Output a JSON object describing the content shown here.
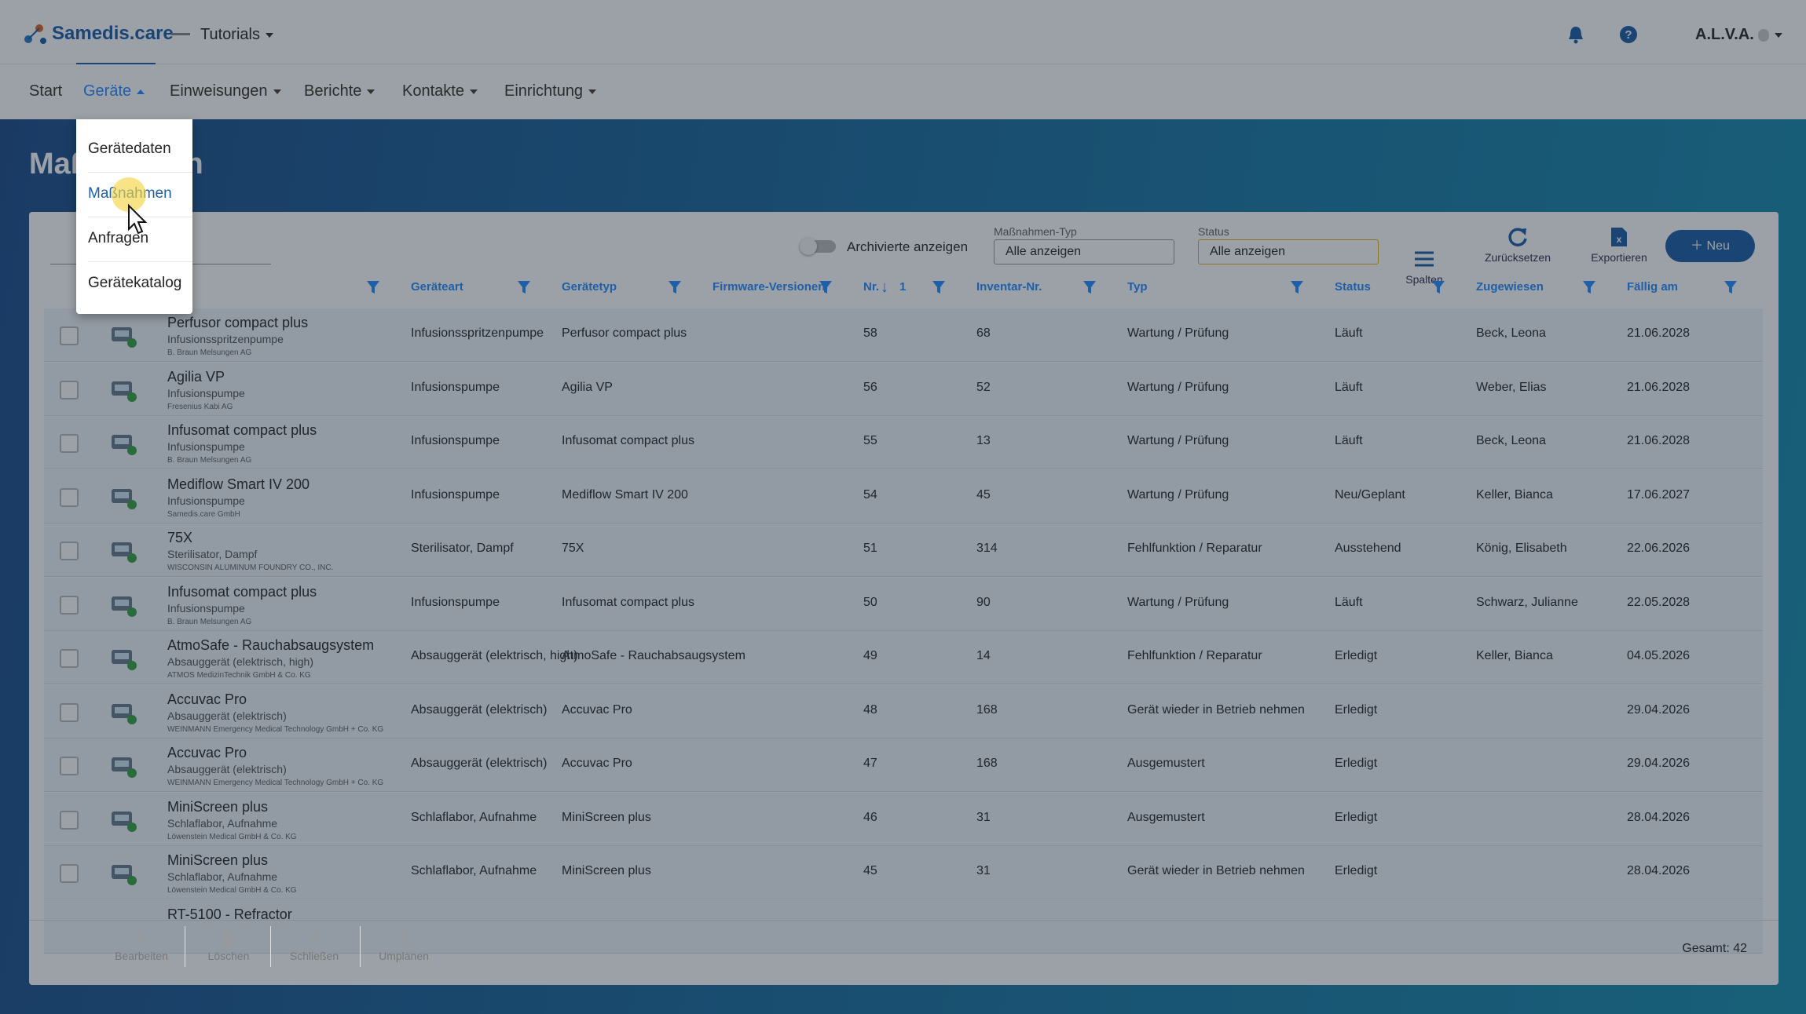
{
  "header": {
    "logo": "Samedis.care",
    "tenant": "Tutorials",
    "user": "A.L.V.A."
  },
  "nav": [
    "Start",
    "Geräte",
    "Einweisungen",
    "Berichte",
    "Kontakte",
    "Einrichtung"
  ],
  "menu": [
    "Gerätedaten",
    "Maßnahmen",
    "Anfragen",
    "Gerätekatalog"
  ],
  "page_title": "Maßnahmen",
  "toolbar": {
    "archived": "Archivierte anzeigen",
    "type_label": "Maßnahmen-Typ",
    "type_value": "Alle anzeigen",
    "status_label": "Status",
    "status_value": "Alle anzeigen",
    "columns": "Spalten",
    "reset": "Zurücksetzen",
    "export": "Exportieren",
    "new": "Neu"
  },
  "table": {
    "headers": [
      "Geräteart",
      "Gerätetyp",
      "Firmware-Versionen",
      "Nr.",
      "Inventar-Nr.",
      "Typ",
      "Status",
      "Zugewiesen",
      "Fällig am"
    ],
    "sort_index": "1",
    "rows": [
      {
        "name": "Perfusor compact plus",
        "category": "Infusionsspritzenpumpe",
        "maker": "B. Braun Melsungen AG",
        "art": "Infusionsspritzenpumpe",
        "typ": "Perfusor compact plus",
        "nr": "58",
        "inv": "68",
        "kind": "Wartung / Prüfung",
        "status": "Läuft",
        "assigned": "Beck, Leona",
        "due": "21.06.2028"
      },
      {
        "name": "Agilia VP",
        "category": "Infusionspumpe",
        "maker": "Fresenius Kabi AG",
        "art": "Infusionspumpe",
        "typ": "Agilia VP",
        "nr": "56",
        "inv": "52",
        "kind": "Wartung / Prüfung",
        "status": "Läuft",
        "assigned": "Weber, Elias",
        "due": "21.06.2028"
      },
      {
        "name": "Infusomat compact plus",
        "category": "Infusionspumpe",
        "maker": "B. Braun Melsungen AG",
        "art": "Infusionspumpe",
        "typ": "Infusomat compact plus",
        "nr": "55",
        "inv": "13",
        "kind": "Wartung / Prüfung",
        "status": "Läuft",
        "assigned": "Beck, Leona",
        "due": "21.06.2028"
      },
      {
        "name": "Mediflow Smart IV 200",
        "category": "Infusionspumpe",
        "maker": "Samedis.care GmbH",
        "art": "Infusionspumpe",
        "typ": "Mediflow Smart IV 200",
        "nr": "54",
        "inv": "45",
        "kind": "Wartung / Prüfung",
        "status": "Neu/Geplant",
        "assigned": "Keller, Bianca",
        "due": "17.06.2027"
      },
      {
        "name": "75X",
        "category": "Sterilisator, Dampf",
        "maker": "WISCONSIN ALUMINUM FOUNDRY CO., INC.",
        "art": "Sterilisator, Dampf",
        "typ": "75X",
        "nr": "51",
        "inv": "314",
        "kind": "Fehlfunktion / Reparatur",
        "status": "Ausstehend",
        "assigned": "König, Elisabeth",
        "due": "22.06.2026"
      },
      {
        "name": "Infusomat compact plus",
        "category": "Infusionspumpe",
        "maker": "B. Braun Melsungen AG",
        "art": "Infusionspumpe",
        "typ": "Infusomat compact plus",
        "nr": "50",
        "inv": "90",
        "kind": "Wartung / Prüfung",
        "status": "Läuft",
        "assigned": "Schwarz, Julianne",
        "due": "22.05.2028"
      },
      {
        "name": "AtmoSafe - Rauchabsaugsystem",
        "category": "Absauggerät (elektrisch, high)",
        "maker": "ATMOS MedizinTechnik GmbH & Co. KG",
        "art": "Absauggerät (elektrisch, high)",
        "typ": "AtmoSafe - Rauchabsaugsystem",
        "nr": "49",
        "inv": "14",
        "kind": "Fehlfunktion / Reparatur",
        "status": "Erledigt",
        "assigned": "Keller, Bianca",
        "due": "04.05.2026"
      },
      {
        "name": "Accuvac Pro",
        "category": "Absauggerät (elektrisch)",
        "maker": "WEINMANN Emergency Medical Technology GmbH + Co. KG",
        "art": "Absauggerät (elektrisch)",
        "typ": "Accuvac Pro",
        "nr": "48",
        "inv": "168",
        "kind": "Gerät wieder in Betrieb nehmen",
        "status": "Erledigt",
        "due": "29.04.2026"
      },
      {
        "name": "Accuvac Pro",
        "category": "Absauggerät (elektrisch)",
        "maker": "WEINMANN Emergency Medical Technology GmbH + Co. KG",
        "art": "Absauggerät (elektrisch)",
        "typ": "Accuvac Pro",
        "nr": "47",
        "inv": "168",
        "kind": "Ausgemustert",
        "status": "Erledigt",
        "due": "29.04.2026"
      },
      {
        "name": "MiniScreen plus",
        "category": "Schlaflabor, Aufnahme",
        "maker": "Löwenstein Medical GmbH & Co. KG",
        "art": "Schlaflabor, Aufnahme",
        "typ": "MiniScreen plus",
        "nr": "46",
        "inv": "31",
        "kind": "Ausgemustert",
        "status": "Erledigt",
        "due": "28.04.2026"
      },
      {
        "name": "MiniScreen plus",
        "category": "Schlaflabor, Aufnahme",
        "maker": "Löwenstein Medical GmbH & Co. KG",
        "art": "Schlaflabor, Aufnahme",
        "typ": "MiniScreen plus",
        "nr": "45",
        "inv": "31",
        "kind": "Gerät wieder in Betrieb nehmen",
        "status": "Erledigt",
        "due": "28.04.2026"
      },
      {
        "name": "RT-5100 - Refractor"
      }
    ]
  },
  "footer": {
    "actions": [
      "Bearbeiten",
      "Löschen",
      "Schließen",
      "Umplanen"
    ],
    "total": "Gesamt: 42"
  }
}
